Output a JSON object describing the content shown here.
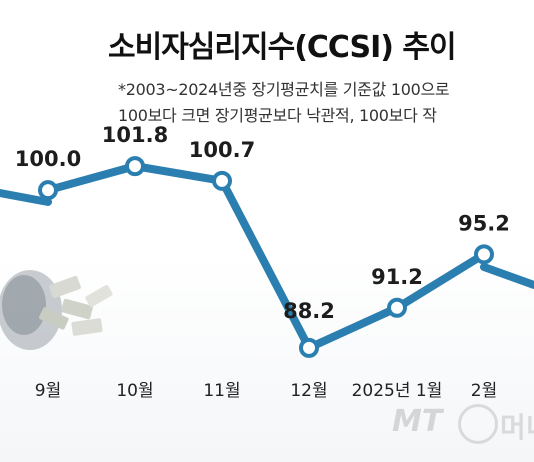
{
  "chart_data": {
    "type": "line",
    "title": "소비자심리지수(CCSI) 추이",
    "notes": [
      "*2003~2024년중 장기평균치를 기준값 100으로",
      "100보다 크면 장기평균보다 낙관적, 100보다 작"
    ],
    "categories": [
      "9월",
      "10월",
      "11월",
      "12월",
      "2025년 1월",
      "2월"
    ],
    "values": [
      100.0,
      101.8,
      100.7,
      88.2,
      91.2,
      95.2
    ],
    "value_labels": [
      "100.0",
      "101.8",
      "100.7",
      "88.2",
      "91.2",
      "95.2"
    ],
    "ylim": [
      84,
      106
    ],
    "grid": false,
    "legend": "none"
  },
  "watermark": {
    "brand": "MT",
    "suffix": "머니투데이"
  },
  "colors": {
    "line": "#2b7fb0",
    "marker_fill": "#ffffff",
    "text": "#111111"
  }
}
